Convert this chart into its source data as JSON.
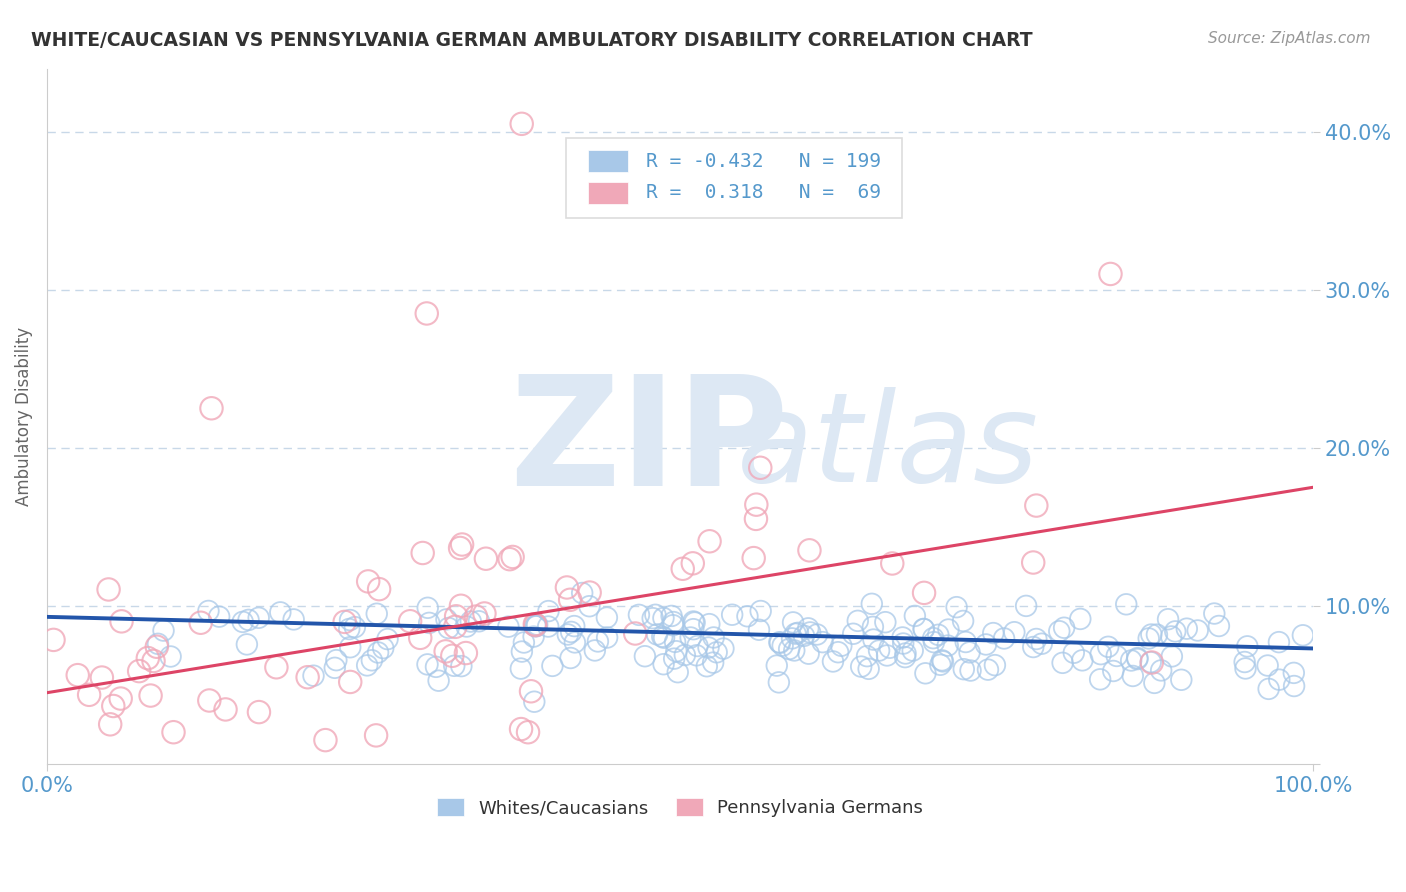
{
  "title": "WHITE/CAUCASIAN VS PENNSYLVANIA GERMAN AMBULATORY DISABILITY CORRELATION CHART",
  "source": "Source: ZipAtlas.com",
  "ylabel": "Ambulatory Disability",
  "xlim": [
    0,
    1.0
  ],
  "ylim": [
    0,
    0.44
  ],
  "yticks": [
    0.0,
    0.1,
    0.2,
    0.3,
    0.4
  ],
  "ytick_labels": [
    "",
    "10.0%",
    "20.0%",
    "30.0%",
    "40.0%"
  ],
  "blue_R": -0.432,
  "blue_N": 199,
  "pink_R": 0.318,
  "pink_N": 69,
  "blue_color": "#a8c8e8",
  "pink_color": "#f0a8b8",
  "blue_line_color": "#2255aa",
  "pink_line_color": "#dd4466",
  "title_color": "#333333",
  "axis_label_color": "#666666",
  "tick_color": "#5599cc",
  "grid_color": "#c8d8e8",
  "source_color": "#999999",
  "watermark_zip": "ZIP",
  "watermark_atlas": "atlas",
  "watermark_color": "#dde8f4",
  "legend_label_blue": "Whites/Caucasians",
  "legend_label_pink": "Pennsylvania Germans",
  "blue_line_start_y": 0.093,
  "blue_line_end_y": 0.073,
  "pink_line_start_y": 0.045,
  "pink_line_end_y": 0.175
}
